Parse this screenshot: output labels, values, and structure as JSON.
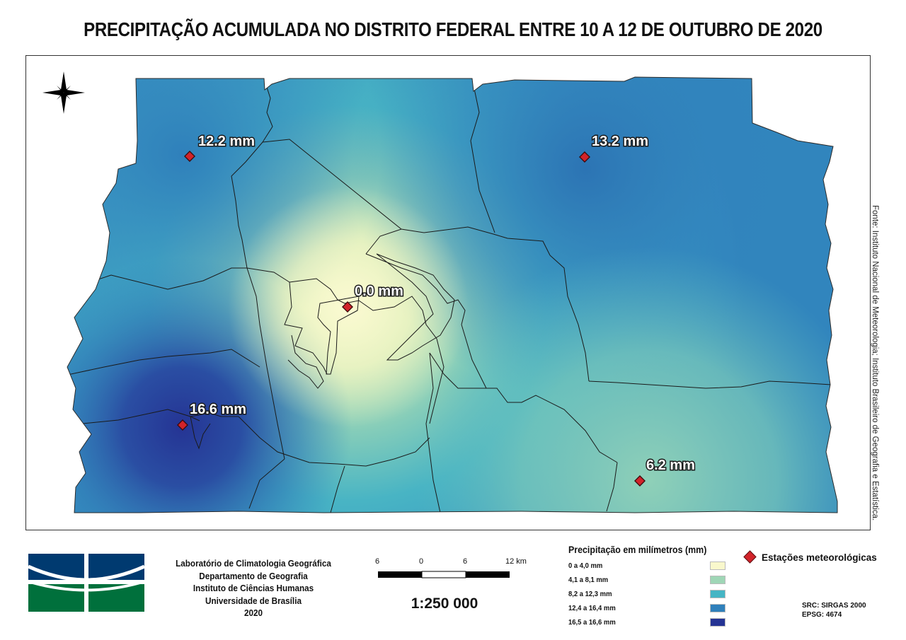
{
  "title": "PRECIPITAÇÃO ACUMULADA NO DISTRITO FEDERAL ENTRE 10 A 12 DE OUTUBRO DE 2020",
  "map": {
    "stations": [
      {
        "id": "nw",
        "label": "12.2 mm",
        "value": 12.2
      },
      {
        "id": "ne",
        "label": "13.2 mm",
        "value": 13.2
      },
      {
        "id": "center",
        "label": "0.0 mm",
        "value": 0.0
      },
      {
        "id": "sw",
        "label": "16.6 mm",
        "value": 16.6
      },
      {
        "id": "se",
        "label": "6.2 mm",
        "value": 6.2
      }
    ],
    "north_arrow_icon": "compass-rose-icon"
  },
  "source_note": "Fonte: Instituto Nacional de Meteorologia; Instituto Brasileiro de Geografia e Estatística.",
  "institution": {
    "lines": [
      "Laboratório de Climatologia Geográfica",
      "Departamento de Geografia",
      "Instituto de Ciências Humanas",
      "Universidade de Brasília",
      "2020"
    ]
  },
  "scale_bar": {
    "ticks": [
      "6",
      "0",
      "6",
      "12 km"
    ],
    "ratio": "1:250 000"
  },
  "legend": {
    "title": "Precipitação em milímetros (mm)",
    "classes": [
      {
        "label": "0 a 4,0 mm",
        "color": "#f9f8cc"
      },
      {
        "label": "4,1 a 8,1 mm",
        "color": "#9fd6b6"
      },
      {
        "label": "8,2 a 12,3 mm",
        "color": "#45b5c4"
      },
      {
        "label": "12,4 a 16,4 mm",
        "color": "#2f80bb"
      },
      {
        "label": "16,5 a 16,6 mm",
        "color": "#253494"
      }
    ],
    "stations_label": "Estações meteorológicas",
    "station_color": "#d2232a"
  },
  "crs": {
    "line1": "SRC: SIRGAS 2000",
    "line2": "EPSG: 4674"
  }
}
